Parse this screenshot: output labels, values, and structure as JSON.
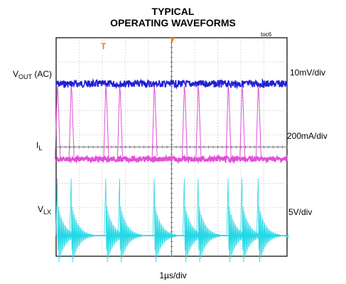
{
  "chart_data": {
    "type": "line",
    "title": [
      "TYPICAL",
      "OPERATING WAVEFORMS"
    ],
    "figure_id": "toc6",
    "xlabel": "1µs/div",
    "grid": true,
    "series": [
      {
        "name_parts": [
          "V",
          "OUT",
          " (AC)"
        ],
        "scale": "10mV/div",
        "color": "#1f1fd6",
        "baseline_div": 1.9,
        "ripple_div": 0.15
      },
      {
        "name_parts": [
          "I",
          "L",
          ""
        ],
        "scale": "200mA/div",
        "color": "#e050d8",
        "baseline_div": 5.0,
        "peak_div": 2.0
      },
      {
        "name_parts": [
          "V",
          "LX",
          ""
        ],
        "scale": "5V/div",
        "color": "#22d8e6",
        "baseline_div": 8.15,
        "spike_div": 5.8,
        "ring_div": 1.2
      }
    ],
    "switch_times_div": [
      0.05,
      0.65,
      2.15,
      2.75,
      4.25,
      5.55,
      6.15,
      7.45,
      8.05,
      8.75
    ],
    "x_divisions": 10,
    "y_divisions": 9
  }
}
